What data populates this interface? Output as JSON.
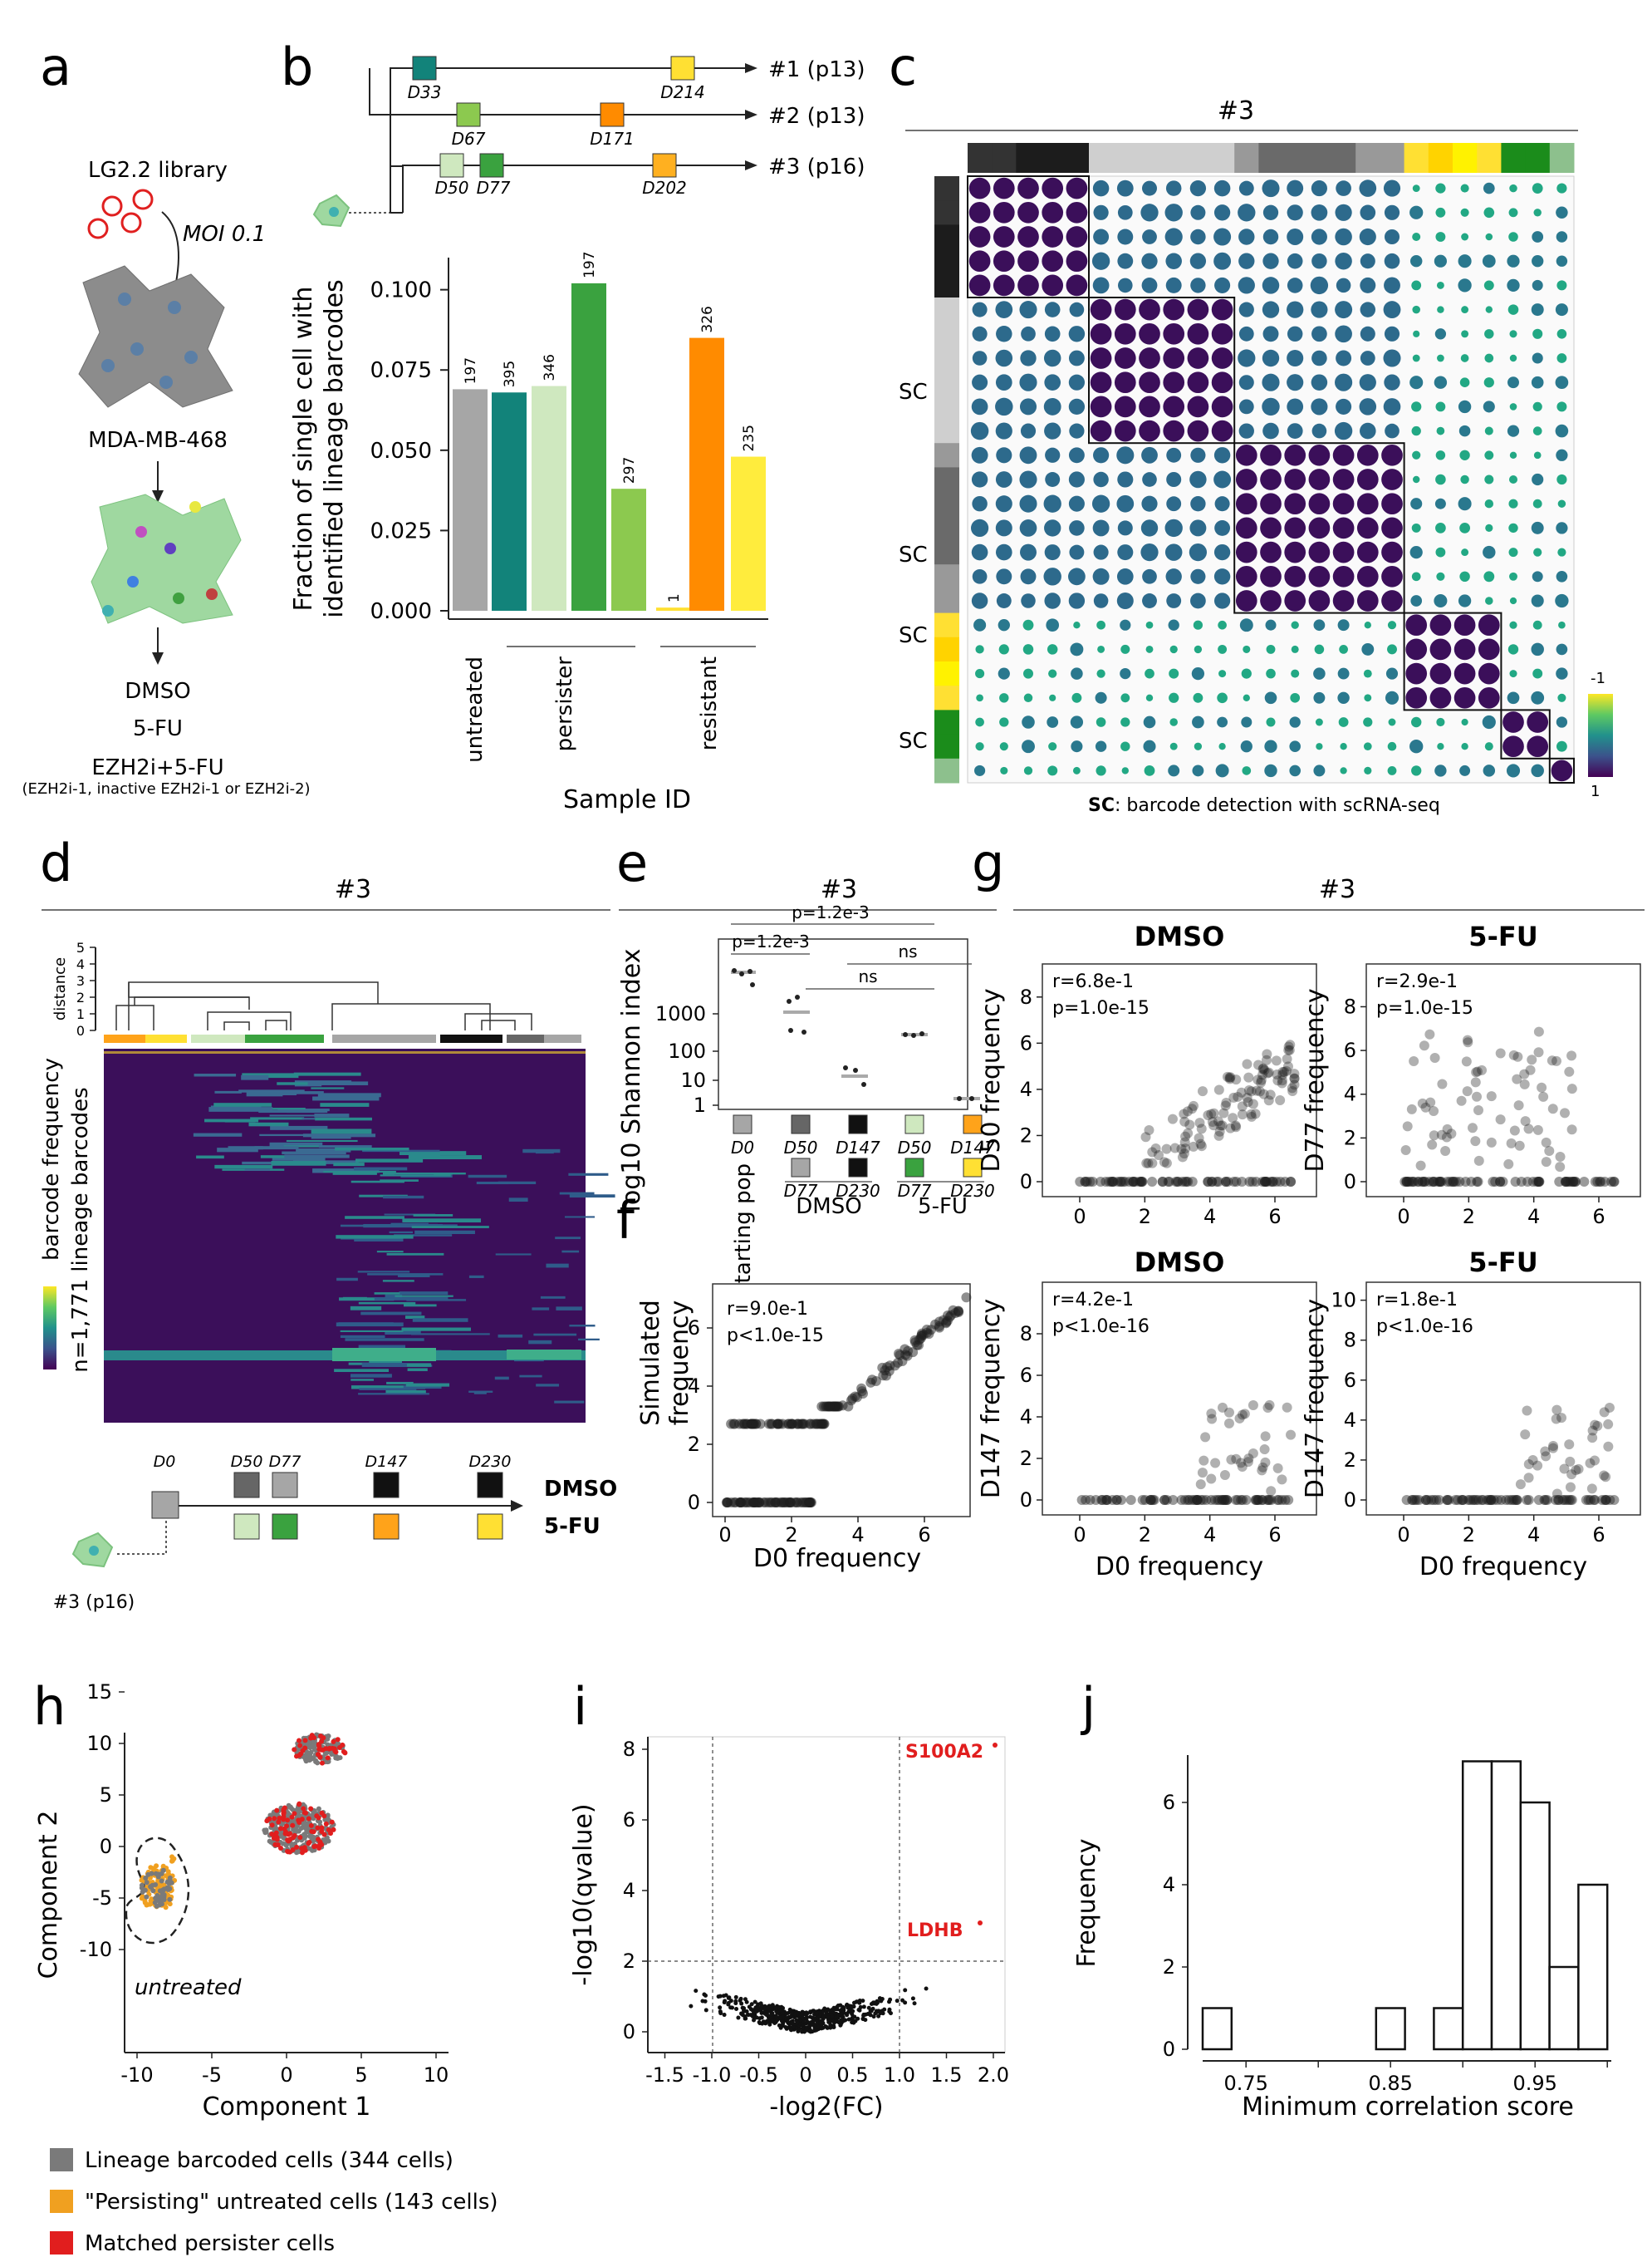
{
  "panel_labels": {
    "a": "a",
    "b": "b",
    "c": "c",
    "d": "d",
    "e": "e",
    "f": "f",
    "g": "g",
    "h": "h",
    "i": "i",
    "j": "j"
  },
  "panel_a": {
    "library": "LG2.2 library",
    "moi": "MOI 0.1",
    "cell_line": "MDA-MB-468",
    "treatments": [
      "DMSO",
      "5-FU",
      "EZH2i+5-FU"
    ],
    "note": "(EZH2i-1, inactive EZH2i-1 or EZH2i-2)"
  },
  "panel_b_lineage": {
    "branches": [
      {
        "label": "#1 (p13)",
        "days": [
          "D33",
          "D214"
        ]
      },
      {
        "label": "#2 (p13)",
        "days": [
          "D67",
          "D171"
        ]
      },
      {
        "label": "#3 (p16)",
        "days": [
          "D50",
          "D77",
          "D202"
        ]
      }
    ]
  },
  "panel_c": {
    "title": "#3",
    "sc_label": "SC",
    "caption_bold": "SC",
    "caption": ": barcode detection with scRNA-seq",
    "scale_top": "-1",
    "scale_bottom": "1"
  },
  "panel_d": {
    "title": "#3",
    "distance_label": "distance",
    "distance_ticks": [
      "0",
      "1",
      "2",
      "3",
      "4",
      "5"
    ],
    "legend_label": "barcode frequency",
    "row_label": "n=1,771 lineage barcodes",
    "timeline_days": [
      "D0",
      "D50",
      "D77",
      "D147",
      "D230"
    ],
    "timeline_labels": [
      "DMSO",
      "5-FU"
    ],
    "founder": "#3 (p16)"
  },
  "panel_e": {
    "title": "#3",
    "ylabel": "log10 Shannon index",
    "yticks": [
      "1",
      "10",
      "100",
      "1000"
    ],
    "p_values": [
      "p=1.2e-3",
      "p=1.2e-3",
      "ns",
      "ns"
    ],
    "xlabels_top": [
      "D0",
      "D50",
      "D147",
      "D50",
      "D147"
    ],
    "xlabels_bottom": [
      "D77",
      "D230",
      "D77",
      "D230"
    ],
    "group_labels": [
      "Starting pop",
      "DMSO",
      "5-FU"
    ]
  },
  "panel_f": {
    "ylabel": "Simulated frequency",
    "xlabel": "D0 frequency",
    "r": "r=9.0e-1",
    "p": "p<1.0e-15"
  },
  "panel_g": {
    "title": "#3",
    "plots": [
      {
        "title": "DMSO",
        "ylabel": "D50 frequency",
        "r": "r=6.8e-1",
        "p": "p=1.0e-15"
      },
      {
        "title": "5-FU",
        "ylabel": "D77 frequency",
        "r": "r=2.9e-1",
        "p": "p=1.0e-15"
      },
      {
        "title": "DMSO",
        "ylabel": "D147 frequency",
        "r": "r=4.2e-1",
        "p": "p<1.0e-16"
      },
      {
        "title": "5-FU",
        "ylabel": "D147 frequency",
        "r": "r=1.8e-1",
        "p": "p<1.0e-16"
      }
    ],
    "xlabel": "D0 frequency"
  },
  "panel_h": {
    "xlabel": "Component 1",
    "ylabel": "Component 2",
    "annotation": "untreated",
    "legend": [
      "Lineage barcoded cells (344 cells)",
      "\"Persisting\" untreated cells (143 cells)",
      "Matched persister cells"
    ]
  },
  "panel_i": {
    "xlabel": "-log2(FC)",
    "ylabel": "-log10(qvalue)",
    "genes": [
      "S100A2",
      "LDHB"
    ]
  },
  "colors": {
    "untreated": "#a6a6a6",
    "teal": "#12837a",
    "light_green": "#cfe8bf",
    "green": "#3aa23f",
    "light_green2": "#8cc94f",
    "orange": "#ff8b00",
    "yellow": "#ffe033",
    "dark_purple": "#3b0f5a",
    "red": "#e11e1e"
  },
  "chart_data": [
    {
      "id": "b",
      "type": "bar",
      "title": "",
      "xlabel": "Sample ID",
      "ylabel": "Fraction of single cell with identified lineage barcodes",
      "ylim": [
        0,
        0.11
      ],
      "yticks": [
        "0.000",
        "0.025",
        "0.050",
        "0.075",
        "0.100"
      ],
      "groups": [
        "untreated",
        "persister",
        "resistant"
      ],
      "bars": [
        {
          "value": 0.069,
          "label": "197",
          "color": "#a6a6a6"
        },
        {
          "value": 0.068,
          "label": "395",
          "color": "#12837a"
        },
        {
          "value": 0.07,
          "label": "346",
          "color": "#cfe8bf"
        },
        {
          "value": 0.102,
          "label": "197",
          "color": "#3aa23f"
        },
        {
          "value": 0.038,
          "label": "297",
          "color": "#8cc94f"
        },
        {
          "value": 0.001,
          "label": "1",
          "color": "#ffe033"
        },
        {
          "value": 0.085,
          "label": "326",
          "color": "#ff8b00"
        },
        {
          "value": 0.048,
          "label": "235",
          "color": "#ffec3d"
        }
      ]
    },
    {
      "id": "j",
      "type": "bar",
      "title": "",
      "xlabel": "Minimum correlation score",
      "ylabel": "Frequency",
      "ylim": [
        0,
        7
      ],
      "categories": [
        "0.73",
        "0.75",
        "0.77",
        "0.79",
        "0.81",
        "0.83",
        "0.85",
        "0.87",
        "0.89",
        "0.91",
        "0.93",
        "0.95",
        "0.97",
        "0.99"
      ],
      "values": [
        1,
        0,
        0,
        0,
        0,
        0,
        1,
        0,
        1,
        7,
        7,
        6,
        2,
        4
      ],
      "xticks": [
        "0.75",
        "0.85",
        "0.95"
      ],
      "yticks": [
        "0",
        "2",
        "4",
        "6"
      ]
    }
  ]
}
